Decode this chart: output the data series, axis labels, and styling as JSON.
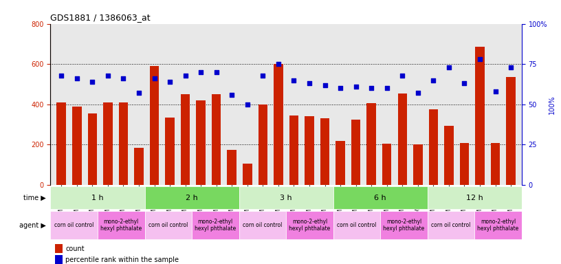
{
  "title": "GDS1881 / 1386063_at",
  "samples": [
    "GSM100955",
    "GSM100956",
    "GSM100957",
    "GSM100969",
    "GSM100970",
    "GSM100971",
    "GSM100958",
    "GSM100959",
    "GSM100972",
    "GSM100973",
    "GSM100974",
    "GSM100975",
    "GSM100960",
    "GSM100961",
    "GSM100962",
    "GSM100976",
    "GSM100977",
    "GSM100978",
    "GSM100963",
    "GSM100964",
    "GSM100965",
    "GSM100979",
    "GSM100980",
    "GSM100981",
    "GSM100951",
    "GSM100952",
    "GSM100953",
    "GSM100966",
    "GSM100967",
    "GSM100968"
  ],
  "counts": [
    410,
    390,
    355,
    410,
    410,
    185,
    590,
    335,
    450,
    420,
    450,
    175,
    105,
    400,
    600,
    345,
    340,
    330,
    220,
    325,
    405,
    205,
    455,
    200,
    375,
    295,
    210,
    685,
    210,
    535
  ],
  "percentiles": [
    68,
    66,
    64,
    68,
    66,
    57,
    66,
    64,
    68,
    70,
    70,
    56,
    50,
    68,
    75,
    65,
    63,
    62,
    60,
    61,
    60,
    60,
    68,
    57,
    65,
    73,
    63,
    78,
    58,
    73
  ],
  "time_groups": [
    {
      "label": "1 h",
      "start": 0,
      "end": 6
    },
    {
      "label": "2 h",
      "start": 6,
      "end": 12
    },
    {
      "label": "3 h",
      "start": 12,
      "end": 18
    },
    {
      "label": "6 h",
      "start": 18,
      "end": 24
    },
    {
      "label": "12 h",
      "start": 24,
      "end": 30
    }
  ],
  "agent_groups": [
    {
      "label": "corn oil control",
      "start": 0,
      "end": 3,
      "color": "#f5c0f0"
    },
    {
      "label": "mono-2-ethyl\nhexyl phthalate",
      "start": 3,
      "end": 6,
      "color": "#f080e0"
    },
    {
      "label": "corn oil control",
      "start": 6,
      "end": 9,
      "color": "#f5c0f0"
    },
    {
      "label": "mono-2-ethyl\nhexyl phthalate",
      "start": 9,
      "end": 12,
      "color": "#f080e0"
    },
    {
      "label": "corn oil control",
      "start": 12,
      "end": 15,
      "color": "#f5c0f0"
    },
    {
      "label": "mono-2-ethyl\nhexyl phthalate",
      "start": 15,
      "end": 18,
      "color": "#f080e0"
    },
    {
      "label": "corn oil control",
      "start": 18,
      "end": 21,
      "color": "#f5c0f0"
    },
    {
      "label": "mono-2-ethyl\nhexyl phthalate",
      "start": 21,
      "end": 24,
      "color": "#f080e0"
    },
    {
      "label": "corn oil control",
      "start": 24,
      "end": 27,
      "color": "#f5c0f0"
    },
    {
      "label": "mono-2-ethyl\nhexyl phthalate",
      "start": 27,
      "end": 30,
      "color": "#f080e0"
    }
  ],
  "bar_color": "#cc2200",
  "dot_color": "#0000cc",
  "ylim_left": [
    0,
    800
  ],
  "ylim_right": [
    0,
    100
  ],
  "yticks_left": [
    0,
    200,
    400,
    600,
    800
  ],
  "yticks_right": [
    0,
    25,
    50,
    75,
    100
  ],
  "bg_color": "#ffffff",
  "plot_bg": "#e8e8e8",
  "time_row_color": "#c8f0c8",
  "time_row_color_dark": "#50cc50"
}
